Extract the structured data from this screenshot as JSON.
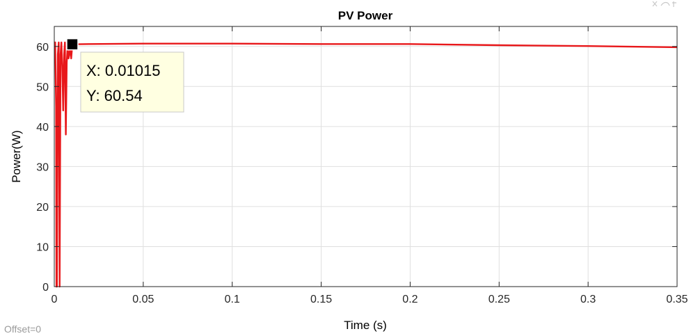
{
  "chart_data": {
    "type": "line",
    "title": "PV Power",
    "xlabel": "Time (s)",
    "ylabel": "Power(W)",
    "xlim": [
      0,
      0.35
    ],
    "ylim": [
      0,
      65
    ],
    "xticks": [
      0,
      0.05,
      0.1,
      0.15,
      0.2,
      0.25,
      0.3,
      0.35
    ],
    "xtick_labels": [
      "0",
      "0.05",
      "0.1",
      "0.15",
      "0.2",
      "0.25",
      "0.3",
      "0.35"
    ],
    "yticks": [
      0,
      10,
      20,
      30,
      40,
      50,
      60
    ],
    "ytick_labels": [
      "0",
      "10",
      "20",
      "30",
      "40",
      "50",
      "60"
    ],
    "grid": true,
    "series": [
      {
        "color": "#e8171a",
        "x": [
          0,
          0.0005,
          0.001,
          0.0012,
          0.0015,
          0.002,
          0.0025,
          0.003,
          0.0035,
          0.004,
          0.0045,
          0.005,
          0.0055,
          0.006,
          0.0065,
          0.007,
          0.0075,
          0.008,
          0.0085,
          0.009,
          0.0095,
          0.01015,
          0.02,
          0.05,
          0.08,
          0.1,
          0.15,
          0.2,
          0.25,
          0.3,
          0.35
        ],
        "y": [
          61,
          61,
          45,
          0,
          0,
          58,
          61,
          0,
          58,
          61,
          55,
          44,
          58,
          61,
          38,
          56,
          60,
          57,
          58,
          60,
          57,
          60.54,
          60.6,
          60.7,
          60.7,
          60.7,
          60.6,
          60.6,
          60.3,
          60.1,
          59.8
        ]
      }
    ],
    "annotation": {
      "x_label": "X: 0.01015",
      "y_label": "Y: 60.54",
      "marker_x": 0.01015,
      "marker_y": 60.54
    }
  },
  "footer": {
    "offset_label": "Offset=0"
  }
}
